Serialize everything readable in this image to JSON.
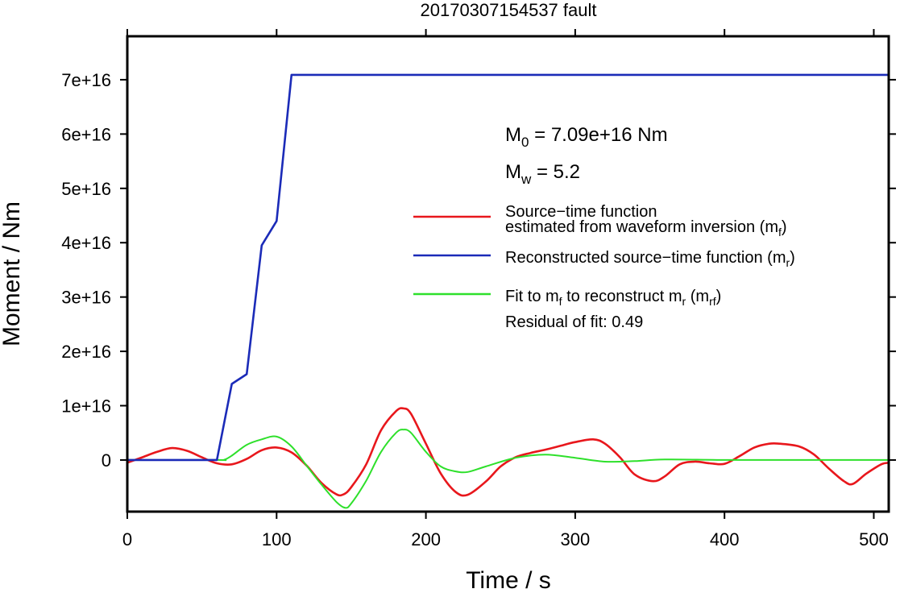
{
  "chart_data": {
    "type": "line",
    "title": "20170307154537 fault",
    "xlabel": "Time / s",
    "ylabel": "Moment / Nm",
    "xlim": [
      0,
      510
    ],
    "ylim": [
      -9500000000000000.0,
      7.8e+16
    ],
    "x_ticks": [
      0,
      100,
      200,
      300,
      400,
      500
    ],
    "x_tick_labels": [
      "0",
      "100",
      "200",
      "300",
      "400",
      "500"
    ],
    "y_ticks": [
      0,
      1e+16,
      2e+16,
      3e+16,
      4e+16,
      5e+16,
      6e+16,
      7e+16
    ],
    "y_tick_labels": [
      "0",
      "1e+16",
      "2e+16",
      "3e+16",
      "4e+16",
      "5e+16",
      "6e+16",
      "7e+16"
    ],
    "grid": false,
    "legend_position": "right",
    "annotations": {
      "m0": {
        "main": "M",
        "sub": "0",
        "rest": " = 7.09e+16 Nm"
      },
      "mw": {
        "main": "M",
        "sub": "w",
        "rest": " = 5.2"
      },
      "residual": "Residual of fit: 0.49"
    },
    "series": [
      {
        "name": "Source−time function estimated from waveform inversion (m_f)",
        "color": "#e8171c",
        "x": [
          0,
          10,
          20,
          30,
          40,
          50,
          60,
          70,
          80,
          90,
          100,
          110,
          120,
          130,
          140,
          145,
          150,
          160,
          170,
          180,
          185,
          190,
          200,
          210,
          220,
          228,
          240,
          250,
          260,
          270,
          280,
          290,
          300,
          312,
          320,
          330,
          340,
          352,
          360,
          370,
          380,
          390,
          400,
          410,
          420,
          430,
          437,
          450,
          460,
          470,
          480,
          486,
          495,
          505,
          510
        ],
        "y": [
          -500000000000000.0,
          500000000000000.0,
          1500000000000000.0,
          2200000000000000.0,
          1700000000000000.0,
          500000000000000.0,
          -600000000000000.0,
          -800000000000000.0,
          200000000000000.0,
          1800000000000000.0,
          2300000000000000.0,
          1400000000000000.0,
          -1000000000000000.0,
          -4200000000000000.0,
          -6300000000000000.0,
          -6300000000000000.0,
          -5000000000000000.0,
          -800000000000000.0,
          5500000000000000.0,
          9000000000000000.0,
          9500000000000000.0,
          8500000000000000.0,
          3000000000000000.0,
          -2500000000000000.0,
          -5900000000000000.0,
          -6400000000000000.0,
          -4000000000000000.0,
          -1200000000000000.0,
          500000000000000.0,
          1300000000000000.0,
          1900000000000000.0,
          2600000000000000.0,
          3300000000000000.0,
          3800000000000000.0,
          3000000000000000.0,
          500000000000000.0,
          -2700000000000000.0,
          -3900000000000000.0,
          -3000000000000000.0,
          -800000000000000.0,
          -300000000000000.0,
          -600000000000000.0,
          -700000000000000.0,
          700000000000000.0,
          2300000000000000.0,
          3000000000000000.0,
          3000000000000000.0,
          2500000000000000.0,
          1000000000000000.0,
          -1600000000000000.0,
          -3900000000000000.0,
          -4400000000000000.0,
          -2500000000000000.0,
          -800000000000000.0,
          -500000000000000.0
        ]
      },
      {
        "name": "Reconstructed source−time function (m_r)",
        "color": "#1b2bb8",
        "x": [
          0,
          60,
          70,
          80,
          90,
          100,
          110,
          510
        ],
        "y": [
          0,
          0,
          1.4e+16,
          1.58e+16,
          3.95e+16,
          4.4e+16,
          7.09e+16,
          7.09e+16
        ]
      },
      {
        "name": "Fit to m_f to reconstruct m_r (m_rf)",
        "color": "#2ee02b",
        "x": [
          0,
          60,
          65,
          70,
          80,
          90,
          100,
          110,
          120,
          130,
          140,
          146,
          150,
          160,
          170,
          180,
          185,
          190,
          200,
          210,
          220,
          228,
          240,
          260,
          280,
          300,
          320,
          340,
          360,
          400,
          450,
          510
        ],
        "y": [
          0,
          0,
          50000000000000.0,
          800000000000000.0,
          2800000000000000.0,
          3800000000000000.0,
          4300000000000000.0,
          2500000000000000.0,
          -1000000000000000.0,
          -4500000000000000.0,
          -7700000000000000.0,
          -8800000000000000.0,
          -8000000000000000.0,
          -3800000000000000.0,
          1500000000000000.0,
          5000000000000000.0,
          5600000000000000.0,
          5000000000000000.0,
          1500000000000000.0,
          -1200000000000000.0,
          -2100000000000000.0,
          -2200000000000000.0,
          -1200000000000000.0,
          400000000000000.0,
          1000000000000000.0,
          400000000000000.0,
          -300000000000000.0,
          -200000000000000.0,
          100000000000000.0,
          0,
          0,
          0
        ]
      }
    ]
  },
  "legend": [
    {
      "line1": "Source−time function",
      "line2_main": "estimated from waveform inversion (m",
      "line2_sub": "f",
      "line2_end": ")"
    },
    {
      "main": "Reconstructed source−time function (m",
      "sub": "r",
      "end": ")"
    },
    {
      "p1": "Fit to m",
      "s1": "f",
      "p2": " to reconstruct m",
      "s2": "r",
      "p3": " (m",
      "s3": "rf",
      "p4": ")"
    }
  ]
}
